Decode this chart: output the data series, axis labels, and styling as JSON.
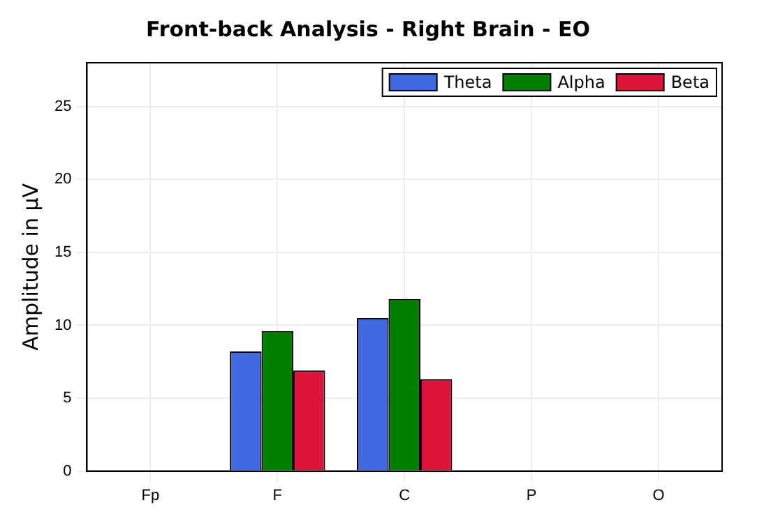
{
  "chart_data": {
    "type": "bar",
    "title": "Front-back Analysis - Right Brain - EO",
    "ylabel": "Amplitude in µV",
    "categories": [
      "Fp",
      "F",
      "C",
      "P",
      "O"
    ],
    "series": [
      {
        "name": "Theta",
        "color": "#4169e1",
        "values": [
          null,
          8.2,
          10.5,
          null,
          null
        ]
      },
      {
        "name": "Alpha",
        "color": "#008000",
        "values": [
          null,
          9.6,
          11.8,
          null,
          null
        ]
      },
      {
        "name": "Beta",
        "color": "#dc143c",
        "values": [
          null,
          6.9,
          6.3,
          null,
          null
        ]
      }
    ],
    "ylim": [
      0,
      28
    ],
    "yticks": [
      0,
      5,
      10,
      15,
      20,
      25
    ],
    "grid": true,
    "legend": "top right"
  }
}
